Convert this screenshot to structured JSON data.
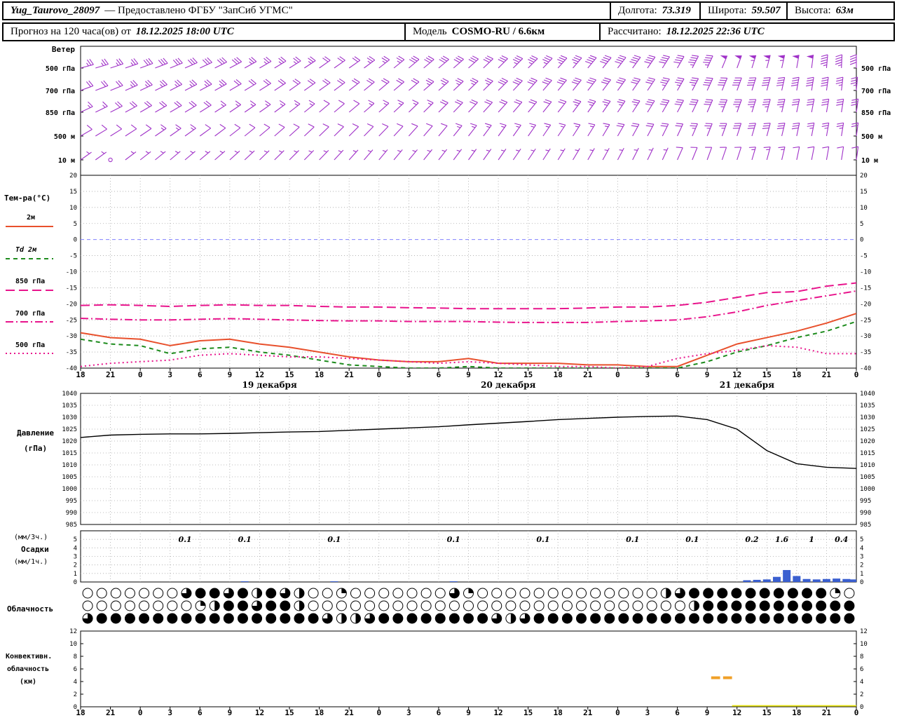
{
  "header": {
    "station": "Yug_Taurovo_28097",
    "provider": "— Предоставлено ФГБУ \"ЗапСиб УГМС\"",
    "lon_label": "Долгота:",
    "lon": "73.319",
    "lat_label": "Широта:",
    "lat": "59.507",
    "alt_label": "Высота:",
    "alt": "63м",
    "forecast_label": "Прогноз на 120 часа(ов) от",
    "forecast_time": "18.12.2025 18:00 UTC",
    "model_label": "Модель",
    "model_name": "COSMO-RU / 6.6км",
    "calc_label": "Рассчитано:",
    "calc_time": "18.12.2025 22:36 UTC"
  },
  "side": {
    "wind_title": "Ветер",
    "wind_levels": [
      "500 гПа",
      "700 гПа",
      "850 гПа",
      "500 м",
      "10 м"
    ],
    "temp_title": "Тем-ра(°C)",
    "pressure_title_1": "Давление",
    "pressure_title_2": "(гПа)",
    "precip_title_1": "(мм/3ч.)",
    "precip_title_2": "Осадки",
    "precip_title_3": "(мм/1ч.)",
    "cloud_title": "Облачность",
    "conv_title_1": "Конвективн.",
    "conv_title_2": "облачность",
    "conv_title_3": "(км)"
  },
  "axis": {
    "hour_labels": [
      "18",
      "21",
      "0",
      "3",
      "6",
      "9",
      "12",
      "15",
      "18",
      "21",
      "0",
      "3",
      "6",
      "9",
      "12",
      "15",
      "18",
      "21",
      "0",
      "3",
      "6",
      "9",
      "12",
      "15",
      "18",
      "21",
      "0"
    ],
    "date_labels": [
      {
        "t": 19,
        "text": "19 декабря"
      },
      {
        "t": 43,
        "text": "20 декабря"
      },
      {
        "t": 67,
        "text": "21 декабря"
      }
    ],
    "temp_ticks": [
      20,
      15,
      10,
      5,
      0,
      -5,
      -10,
      -15,
      -20,
      -25,
      -30,
      -35,
      -40
    ],
    "pressure_ticks": [
      1040,
      1035,
      1030,
      1025,
      1020,
      1015,
      1010,
      1005,
      1000,
      995,
      990,
      985
    ],
    "precip_ticks": [
      5,
      4,
      3,
      2,
      1,
      0
    ],
    "conv_ticks": [
      12,
      10,
      8,
      6,
      4,
      2,
      0
    ]
  },
  "colors": {
    "barb": "#a032c8",
    "t2m": "#e8502c",
    "td2m": "#1e8c1e",
    "pink": "#e8148c",
    "pressure": "#000000",
    "precip_bar": "#3a5fd0",
    "conv_seg": "#f0a028",
    "conv_base": "#e8e41c",
    "grid": "#a8a8a8",
    "zero_line": "#8080ff"
  },
  "chart_data": [
    {
      "id": "wind",
      "type": "wind-barbs",
      "title": "Ветер",
      "x_hours": [
        0,
        3,
        6,
        9,
        12,
        15,
        18,
        21,
        24,
        27,
        30,
        33,
        36,
        39,
        42,
        45,
        48,
        51,
        54,
        57,
        60,
        63,
        66,
        69,
        72,
        75,
        78
      ],
      "levels": [
        {
          "name": "500 гПа",
          "dir_deg": [
            75,
            72,
            70,
            68,
            65,
            62,
            60,
            58,
            55,
            55,
            52,
            50,
            50,
            48,
            45,
            45,
            42,
            40,
            38,
            35,
            30,
            25,
            20,
            15,
            10,
            5,
            0
          ],
          "speed_kt": [
            25,
            25,
            28,
            30,
            30,
            28,
            25,
            25,
            22,
            22,
            25,
            28,
            30,
            30,
            32,
            35,
            35,
            38,
            38,
            40,
            42,
            45,
            50,
            55,
            50,
            45,
            42
          ]
        },
        {
          "name": "700 гПа",
          "dir_deg": [
            70,
            68,
            65,
            63,
            62,
            60,
            58,
            55,
            55,
            52,
            50,
            50,
            48,
            46,
            45,
            42,
            40,
            38,
            36,
            34,
            30,
            25,
            20,
            15,
            10,
            8,
            5
          ],
          "speed_kt": [
            20,
            22,
            25,
            25,
            25,
            22,
            20,
            20,
            18,
            18,
            20,
            22,
            25,
            25,
            28,
            28,
            30,
            30,
            32,
            32,
            35,
            38,
            40,
            42,
            40,
            38,
            35
          ]
        },
        {
          "name": "850 гПа",
          "dir_deg": [
            65,
            63,
            60,
            60,
            58,
            56,
            55,
            52,
            50,
            50,
            48,
            46,
            45,
            43,
            42,
            40,
            38,
            36,
            34,
            32,
            28,
            24,
            20,
            15,
            12,
            10,
            8
          ],
          "speed_kt": [
            15,
            18,
            18,
            20,
            18,
            16,
            15,
            14,
            12,
            12,
            15,
            15,
            18,
            18,
            20,
            22,
            22,
            25,
            25,
            28,
            30,
            32,
            35,
            35,
            32,
            30,
            28
          ]
        },
        {
          "name": "500 м",
          "dir_deg": [
            60,
            58,
            56,
            55,
            54,
            52,
            50,
            48,
            46,
            45,
            44,
            42,
            40,
            38,
            36,
            35,
            34,
            32,
            30,
            28,
            25,
            22,
            18,
            15,
            12,
            10,
            8
          ],
          "speed_kt": [
            10,
            12,
            12,
            14,
            12,
            10,
            10,
            8,
            8,
            8,
            10,
            12,
            12,
            14,
            15,
            15,
            16,
            16,
            18,
            18,
            22,
            25,
            28,
            30,
            28,
            25,
            22
          ]
        },
        {
          "name": "10 м",
          "dir_deg": [
            55,
            54,
            52,
            50,
            50,
            48,
            46,
            45,
            44,
            42,
            40,
            40,
            38,
            36,
            35,
            34,
            32,
            30,
            28,
            26,
            24,
            20,
            18,
            15,
            12,
            10,
            8
          ],
          "speed_kt": [
            4,
            1,
            5,
            6,
            5,
            4,
            4,
            3,
            3,
            3,
            4,
            5,
            5,
            6,
            6,
            6,
            7,
            6,
            6,
            5,
            8,
            10,
            12,
            15,
            12,
            10,
            8
          ]
        }
      ]
    },
    {
      "id": "temp",
      "type": "line",
      "title": "Тем-ра(°C)",
      "ylim": [
        -40,
        20
      ],
      "x_hours": [
        0,
        3,
        6,
        9,
        12,
        15,
        18,
        21,
        24,
        27,
        30,
        33,
        36,
        39,
        42,
        45,
        48,
        51,
        54,
        57,
        60,
        63,
        66,
        69,
        72,
        75,
        78
      ],
      "series": [
        {
          "name": "2м",
          "color": "#e8502c",
          "style": "solid",
          "values": [
            -29,
            -30.5,
            -31,
            -33,
            -31.5,
            -31,
            -32.5,
            -33.5,
            -35,
            -36.5,
            -37.5,
            -38,
            -38,
            -37,
            -38.5,
            -38.5,
            -38.5,
            -39,
            -39,
            -39.5,
            -39.5,
            -36,
            -32.5,
            -30.5,
            -28.5,
            -26,
            -23
          ]
        },
        {
          "name": "Td 2м",
          "color": "#1e8c1e",
          "style": "dash",
          "values": [
            -31,
            -32.5,
            -33,
            -35.5,
            -34,
            -33.5,
            -35,
            -36,
            -37.5,
            -39,
            -39.5,
            -40,
            -40,
            -39.5,
            -40,
            -40,
            -40,
            -40,
            -40,
            -40,
            -40,
            -38,
            -35,
            -33,
            -30.5,
            -28.5,
            -25.5
          ]
        },
        {
          "name": "850 гПа",
          "color": "#e8148c",
          "style": "longdash",
          "values": [
            -20.5,
            -20.3,
            -20.5,
            -20.8,
            -20.5,
            -20.3,
            -20.5,
            -20.5,
            -20.8,
            -21,
            -21,
            -21.2,
            -21.3,
            -21.5,
            -21.5,
            -21.5,
            -21.5,
            -21.3,
            -21,
            -21,
            -20.5,
            -19.5,
            -18,
            -16.5,
            -16.2,
            -14.5,
            -13.5
          ]
        },
        {
          "name": "700 гПа",
          "color": "#e8148c",
          "style": "dashdot",
          "values": [
            -24.5,
            -24.8,
            -25,
            -25,
            -24.8,
            -24.6,
            -24.8,
            -25,
            -25.2,
            -25.3,
            -25.3,
            -25.5,
            -25.5,
            -25.5,
            -25.7,
            -25.8,
            -25.8,
            -25.8,
            -25.5,
            -25.3,
            -25,
            -24,
            -22.5,
            -20.5,
            -19,
            -17.5,
            -16
          ]
        },
        {
          "name": "500 гПа",
          "color": "#e8148c",
          "style": "dot",
          "values": [
            -39.5,
            -38.5,
            -38,
            -37.5,
            -36,
            -35.5,
            -36,
            -36.5,
            -36.5,
            -37,
            -37.5,
            -38,
            -38.5,
            -38,
            -38.5,
            -39,
            -39.5,
            -39.5,
            -40,
            -39.5,
            -37,
            -35.5,
            -34.5,
            -33,
            -33.5,
            -35.5,
            -35.5
          ]
        }
      ]
    },
    {
      "id": "pressure",
      "type": "line",
      "title": "Давление (гПа)",
      "ylim": [
        985,
        1040
      ],
      "x_hours": [
        0,
        3,
        6,
        9,
        12,
        15,
        18,
        21,
        24,
        27,
        30,
        33,
        36,
        39,
        42,
        45,
        48,
        51,
        54,
        57,
        60,
        63,
        66,
        69,
        72,
        75,
        78
      ],
      "values": [
        1021.5,
        1022.5,
        1022.8,
        1023,
        1023,
        1023.2,
        1023.5,
        1023.8,
        1024,
        1024.5,
        1025,
        1025.5,
        1026,
        1026.8,
        1027.5,
        1028.2,
        1029,
        1029.5,
        1030,
        1030.3,
        1030.5,
        1029,
        1025,
        1016,
        1010.5,
        1009,
        1008.5
      ]
    },
    {
      "id": "precip",
      "type": "bar",
      "title": "Осадки",
      "units_3h": "мм/3ч",
      "units_1h": "мм/1ч",
      "ylim": [
        0,
        6
      ],
      "labels_3h": [
        {
          "t": 10.5,
          "text": "0.1"
        },
        {
          "t": 16.5,
          "text": "0.1"
        },
        {
          "t": 25.5,
          "text": "0.1"
        },
        {
          "t": 37.5,
          "text": "0.1"
        },
        {
          "t": 46.5,
          "text": "0.1"
        },
        {
          "t": 55.5,
          "text": "0.1"
        },
        {
          "t": 61.5,
          "text": "0.1"
        },
        {
          "t": 67.5,
          "text": "0.2"
        },
        {
          "t": 70.5,
          "text": "1.6"
        },
        {
          "t": 73.5,
          "text": "1"
        },
        {
          "t": 76.5,
          "text": "0.4"
        }
      ],
      "bars_1h": [
        {
          "t": 16.5,
          "v": 0.08
        },
        {
          "t": 25.5,
          "v": 0.08
        },
        {
          "t": 37.5,
          "v": 0.08
        },
        {
          "t": 67,
          "v": 0.2
        },
        {
          "t": 68,
          "v": 0.25
        },
        {
          "t": 69,
          "v": 0.3
        },
        {
          "t": 70,
          "v": 0.6
        },
        {
          "t": 71,
          "v": 1.4
        },
        {
          "t": 72,
          "v": 0.7
        },
        {
          "t": 73,
          "v": 0.35
        },
        {
          "t": 74,
          "v": 0.3
        },
        {
          "t": 75,
          "v": 0.35
        },
        {
          "t": 76,
          "v": 0.4
        },
        {
          "t": 77,
          "v": 0.35
        },
        {
          "t": 78,
          "v": 0.3
        }
      ]
    },
    {
      "id": "clouds",
      "type": "cloud-cover",
      "title": "Облачность",
      "rows_octas": [
        [
          0,
          0,
          0,
          0,
          0,
          0,
          0,
          6,
          8,
          8,
          6,
          8,
          4,
          8,
          6,
          4,
          0,
          0,
          2,
          0,
          0,
          0,
          0,
          0,
          0,
          0,
          6,
          2,
          0,
          0,
          0,
          0,
          0,
          0,
          0,
          0,
          0,
          0,
          0,
          0,
          0,
          4,
          6,
          8,
          8,
          8,
          8,
          8,
          8,
          8,
          8,
          8,
          8,
          2,
          0
        ],
        [
          0,
          0,
          0,
          0,
          0,
          0,
          0,
          0,
          2,
          4,
          8,
          8,
          6,
          8,
          8,
          4,
          0,
          0,
          0,
          0,
          0,
          0,
          0,
          0,
          0,
          0,
          0,
          0,
          0,
          0,
          0,
          0,
          0,
          0,
          0,
          0,
          0,
          0,
          0,
          0,
          0,
          0,
          0,
          4,
          8,
          8,
          8,
          8,
          8,
          8,
          8,
          8,
          8,
          8,
          8
        ],
        [
          6,
          8,
          8,
          8,
          8,
          8,
          8,
          8,
          8,
          8,
          8,
          8,
          8,
          8,
          8,
          8,
          8,
          6,
          4,
          4,
          6,
          8,
          8,
          8,
          8,
          8,
          8,
          8,
          8,
          6,
          4,
          6,
          8,
          8,
          8,
          8,
          8,
          8,
          8,
          8,
          8,
          8,
          8,
          8,
          8,
          8,
          8,
          8,
          8,
          8,
          8,
          8,
          8,
          8,
          8
        ]
      ]
    },
    {
      "id": "conv",
      "type": "segments",
      "title": "Конвективная облачность (км)",
      "ylim": [
        0,
        12
      ],
      "segments": [
        {
          "t1": 63.4,
          "t2": 64.3,
          "km": 4.6,
          "color": "#f0a028",
          "width": 4
        },
        {
          "t1": 64.6,
          "t2": 65.5,
          "km": 4.6,
          "color": "#f0a028",
          "width": 4
        },
        {
          "t1": 65.5,
          "t2": 78,
          "km": 0.15,
          "color": "#e8e41c",
          "width": 2
        }
      ]
    }
  ]
}
